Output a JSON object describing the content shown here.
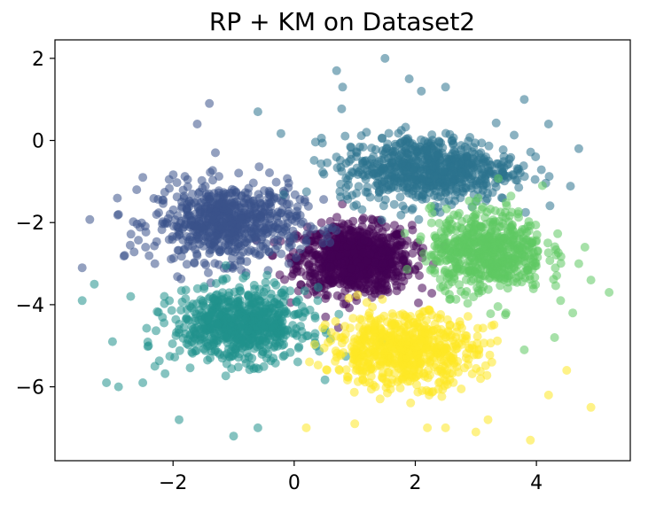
{
  "chart_data": {
    "type": "scatter",
    "title": "RP + KM on Dataset2",
    "xlabel": "",
    "ylabel": "",
    "xlim": [
      -3.95,
      5.55
    ],
    "ylim": [
      -7.8,
      2.45
    ],
    "xticks": [
      -2,
      0,
      2,
      4
    ],
    "yticks": [
      2,
      0,
      -2,
      -4,
      -6
    ],
    "xtick_labels": [
      "−2",
      "0",
      "2",
      "4"
    ],
    "ytick_labels": [
      "2",
      "0",
      "−2",
      "−4",
      "−6"
    ],
    "grid": false,
    "legend": false,
    "marker_alpha": 0.55,
    "clusters": [
      {
        "color": "#440154",
        "center": [
          1.0,
          -2.9
        ],
        "spread": [
          0.85,
          0.75
        ],
        "n": 900,
        "outliers": []
      },
      {
        "color": "#3b528b",
        "center": [
          -1.1,
          -2.0
        ],
        "spread": [
          1.1,
          0.85
        ],
        "n": 650,
        "outliers": [
          [
            -3.5,
            -3.1
          ],
          [
            -2.9,
            -1.8
          ],
          [
            -2.6,
            -1.2
          ],
          [
            -2.5,
            -0.9
          ],
          [
            -1.4,
            0.9
          ],
          [
            -1.6,
            0.4
          ],
          [
            -1.3,
            -0.3
          ],
          [
            -2.8,
            -2.8
          ],
          [
            -2.3,
            -3.0
          ]
        ]
      },
      {
        "color": "#2c728e",
        "center": [
          2.2,
          -0.7
        ],
        "spread": [
          1.3,
          0.75
        ],
        "n": 700,
        "outliers": [
          [
            0.7,
            1.7
          ],
          [
            1.5,
            2.0
          ],
          [
            2.1,
            1.2
          ],
          [
            1.9,
            1.5
          ],
          [
            3.8,
            1.0
          ],
          [
            4.2,
            0.4
          ],
          [
            4.7,
            -0.2
          ],
          [
            0.8,
            1.3
          ],
          [
            2.5,
            1.3
          ],
          [
            -0.6,
            0.7
          ]
        ]
      },
      {
        "color": "#5ec962",
        "center": [
          3.2,
          -2.7
        ],
        "spread": [
          0.85,
          0.9
        ],
        "n": 600,
        "outliers": [
          [
            5.2,
            -3.7
          ],
          [
            4.9,
            -3.4
          ],
          [
            4.6,
            -4.2
          ],
          [
            4.3,
            -4.8
          ],
          [
            4.8,
            -2.6
          ],
          [
            4.1,
            -1.1
          ],
          [
            3.8,
            -5.1
          ],
          [
            4.7,
            -3.0
          ],
          [
            4.4,
            -3.9
          ]
        ]
      },
      {
        "color": "#21918c",
        "center": [
          -0.9,
          -4.5
        ],
        "spread": [
          1.0,
          0.8
        ],
        "n": 700,
        "outliers": [
          [
            -3.5,
            -3.9
          ],
          [
            -3.3,
            -3.5
          ],
          [
            -3.0,
            -4.9
          ],
          [
            -3.1,
            -5.9
          ],
          [
            -2.9,
            -6.0
          ],
          [
            -2.7,
            -3.8
          ],
          [
            -2.5,
            -5.9
          ],
          [
            -1.0,
            -7.2
          ],
          [
            -0.6,
            -7.0
          ],
          [
            -2.3,
            -5.5
          ],
          [
            -1.9,
            -6.8
          ]
        ]
      },
      {
        "color": "#fde725",
        "center": [
          1.8,
          -5.1
        ],
        "spread": [
          1.1,
          0.8
        ],
        "n": 650,
        "outliers": [
          [
            2.2,
            -7.0
          ],
          [
            2.5,
            -7.0
          ],
          [
            3.0,
            -7.1
          ],
          [
            3.9,
            -7.3
          ],
          [
            4.9,
            -6.5
          ],
          [
            3.2,
            -6.8
          ],
          [
            0.2,
            -7.0
          ],
          [
            4.2,
            -6.2
          ],
          [
            1.0,
            -6.9
          ],
          [
            4.5,
            -5.6
          ]
        ]
      }
    ]
  }
}
